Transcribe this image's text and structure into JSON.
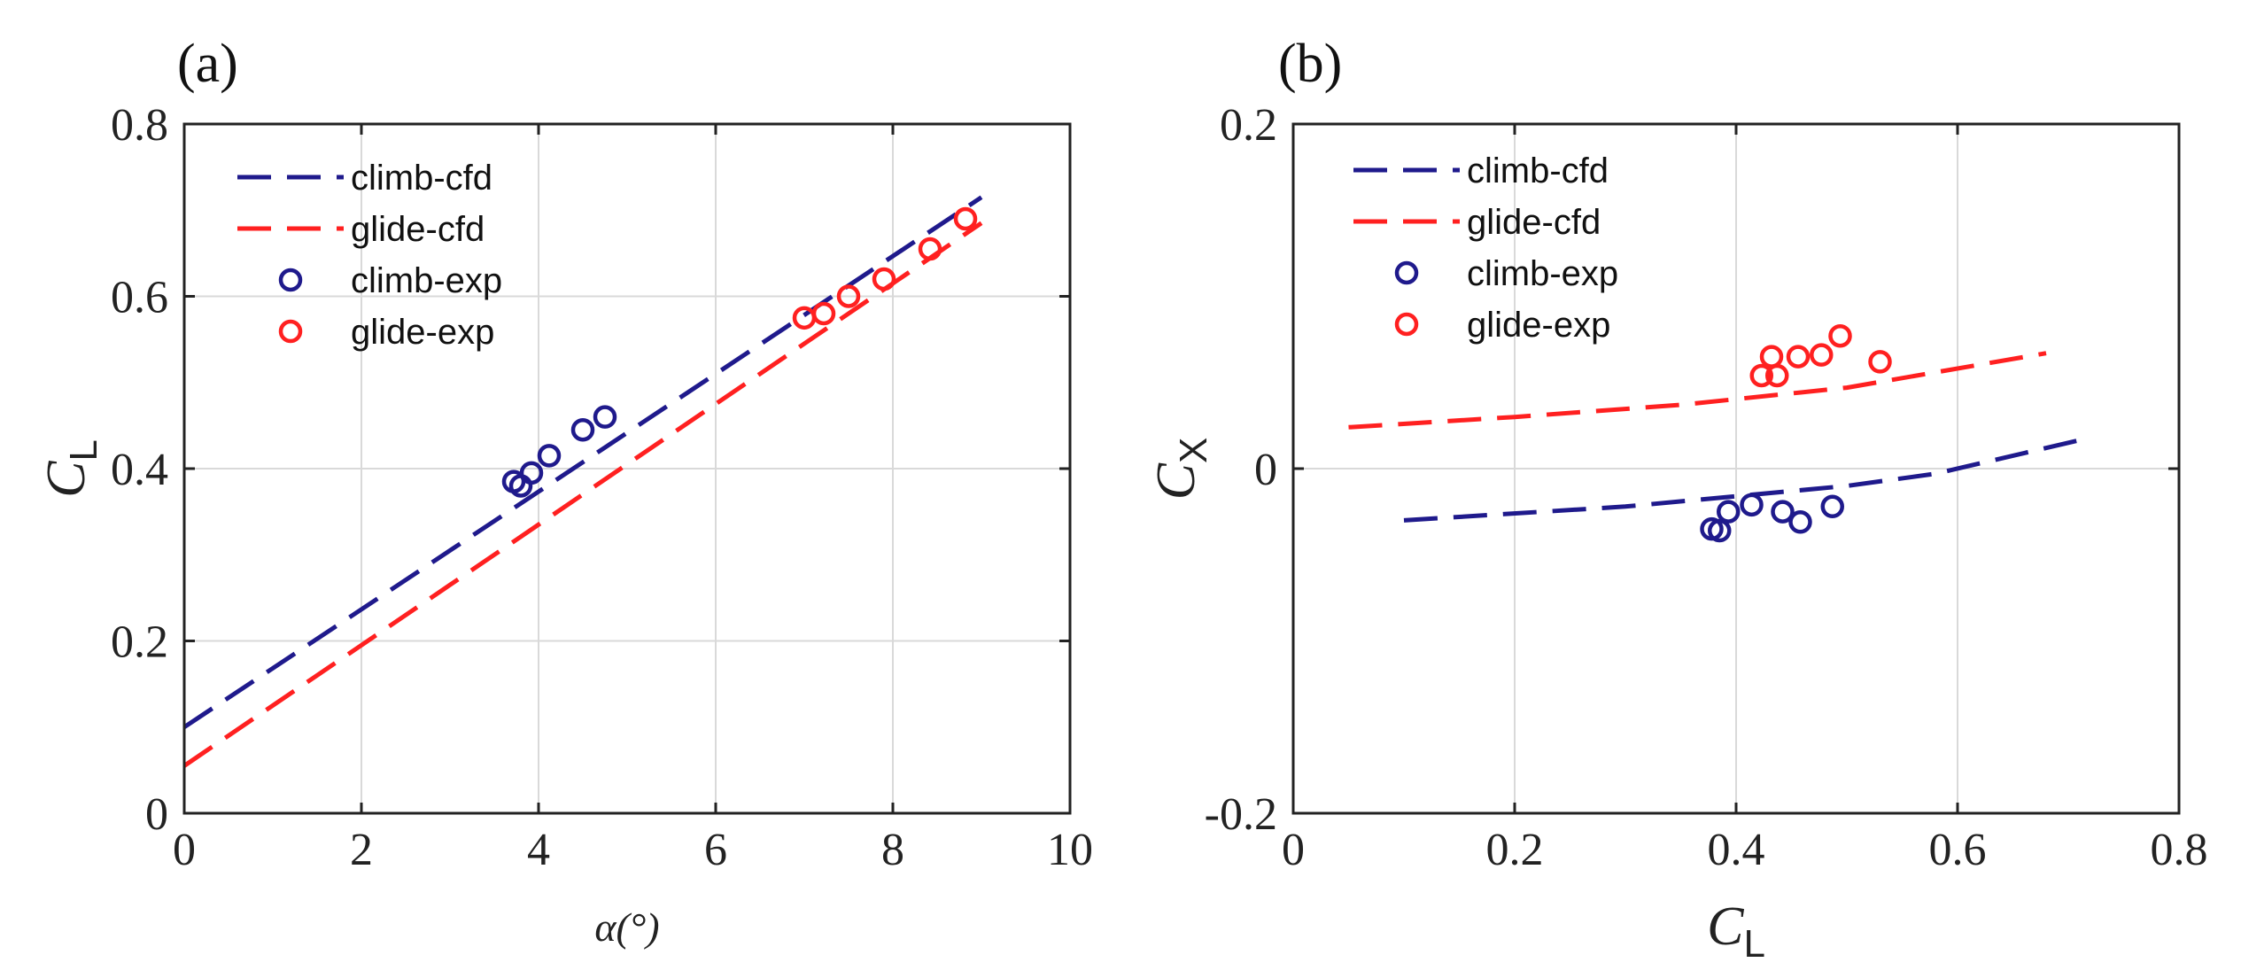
{
  "chart_data": [
    {
      "type": "scatter",
      "panel_label": "(a)",
      "xlabel": "α(°)",
      "ylabel": "C",
      "ylabel_sub": "L",
      "xlim": [
        0,
        10
      ],
      "ylim": [
        0,
        0.8
      ],
      "xticks": [
        0,
        2,
        4,
        6,
        8,
        10
      ],
      "xtick_labels": [
        "0",
        "2",
        "4",
        "6",
        "8",
        "10"
      ],
      "yticks": [
        0,
        0.2,
        0.4,
        0.6,
        0.8
      ],
      "ytick_labels": [
        "0",
        "0.2",
        "0.4",
        "0.6",
        "0.8"
      ],
      "grid": true,
      "legend_position": "top-left",
      "series": [
        {
          "name": "climb-cfd",
          "style": "dashed-line",
          "color": "#1f1a8c",
          "x": [
            0,
            9
          ],
          "y": [
            0.1,
            0.715
          ]
        },
        {
          "name": "glide-cfd",
          "style": "dashed-line",
          "color": "#ff2020",
          "x": [
            0,
            9
          ],
          "y": [
            0.055,
            0.685
          ]
        },
        {
          "name": "climb-exp",
          "style": "circle-marker",
          "color": "#1f1a8c",
          "x": [
            3.72,
            3.8,
            3.92,
            4.12,
            4.5,
            4.75
          ],
          "y": [
            0.385,
            0.38,
            0.395,
            0.415,
            0.445,
            0.46
          ]
        },
        {
          "name": "glide-exp",
          "style": "circle-marker",
          "color": "#ff2020",
          "x": [
            7.0,
            7.22,
            7.5,
            7.9,
            8.42,
            8.82
          ],
          "y": [
            0.575,
            0.58,
            0.6,
            0.62,
            0.655,
            0.69
          ]
        }
      ]
    },
    {
      "type": "scatter",
      "panel_label": "(b)",
      "xlabel": "C",
      "xlabel_sub": "L",
      "ylabel": "C",
      "ylabel_sub": "X",
      "xlim": [
        0,
        0.8
      ],
      "ylim": [
        -0.2,
        0.2
      ],
      "xticks": [
        0,
        0.2,
        0.4,
        0.6,
        0.8
      ],
      "xtick_labels": [
        "0",
        "0.2",
        "0.4",
        "0.6",
        "0.8"
      ],
      "yticks": [
        -0.2,
        0,
        0.2
      ],
      "ytick_labels": [
        "-0.2",
        "0",
        "0.2"
      ],
      "grid": true,
      "legend_position": "top-left",
      "series": [
        {
          "name": "climb-cfd",
          "style": "dashed-line",
          "color": "#1f1a8c",
          "x": [
            0.1,
            0.3,
            0.5,
            0.58,
            0.72
          ],
          "y": [
            -0.03,
            -0.022,
            -0.01,
            -0.003,
            0.018
          ]
        },
        {
          "name": "glide-cfd",
          "style": "dashed-line",
          "color": "#ff2020",
          "x": [
            0.05,
            0.2,
            0.35,
            0.5,
            0.68
          ],
          "y": [
            0.024,
            0.03,
            0.037,
            0.047,
            0.067
          ]
        },
        {
          "name": "climb-exp",
          "style": "circle-marker",
          "color": "#1f1a8c",
          "x": [
            0.378,
            0.385,
            0.393,
            0.414,
            0.442,
            0.458,
            0.487
          ],
          "y": [
            -0.035,
            -0.036,
            -0.025,
            -0.021,
            -0.025,
            -0.031,
            -0.022
          ]
        },
        {
          "name": "glide-exp",
          "style": "circle-marker",
          "color": "#ff2020",
          "x": [
            0.423,
            0.432,
            0.437,
            0.456,
            0.477,
            0.494,
            0.53
          ],
          "y": [
            0.054,
            0.065,
            0.054,
            0.065,
            0.066,
            0.077,
            0.062
          ]
        }
      ]
    }
  ]
}
